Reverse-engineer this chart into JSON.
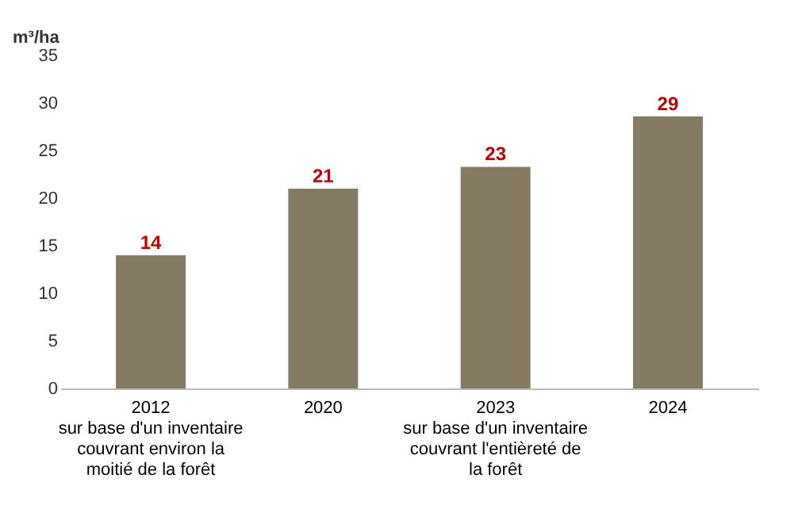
{
  "chart_data": {
    "type": "bar",
    "ylabel": "m³/ha",
    "categories": [
      "2012\nsur base d'un inventaire\ncouvrant environ la\nmoitié de la forêt",
      "2020",
      "2023\nsur base d'un inventaire\ncouvrant l'entièreté de\nla forêt",
      "2024"
    ],
    "series": [
      {
        "color": "#857b62",
        "values": [
          14,
          21,
          23.3,
          28.6
        ],
        "value_labels": [
          "14",
          "21",
          "23",
          "29"
        ]
      }
    ],
    "ylim": [
      0,
      35
    ],
    "yticks": [
      0,
      5,
      10,
      15,
      20,
      25,
      30,
      35
    ],
    "grid": false
  }
}
